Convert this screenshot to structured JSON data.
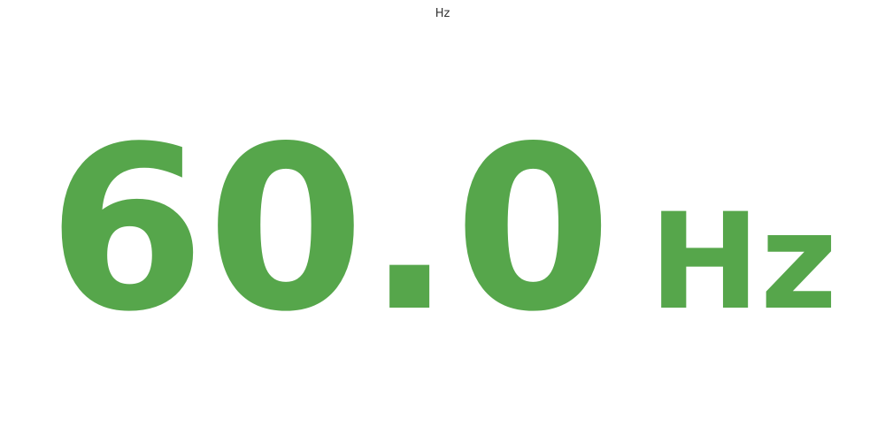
{
  "panel": {
    "title": "Hz",
    "value": "60.0",
    "unit": "Hz",
    "value_color": "#56a64b"
  }
}
